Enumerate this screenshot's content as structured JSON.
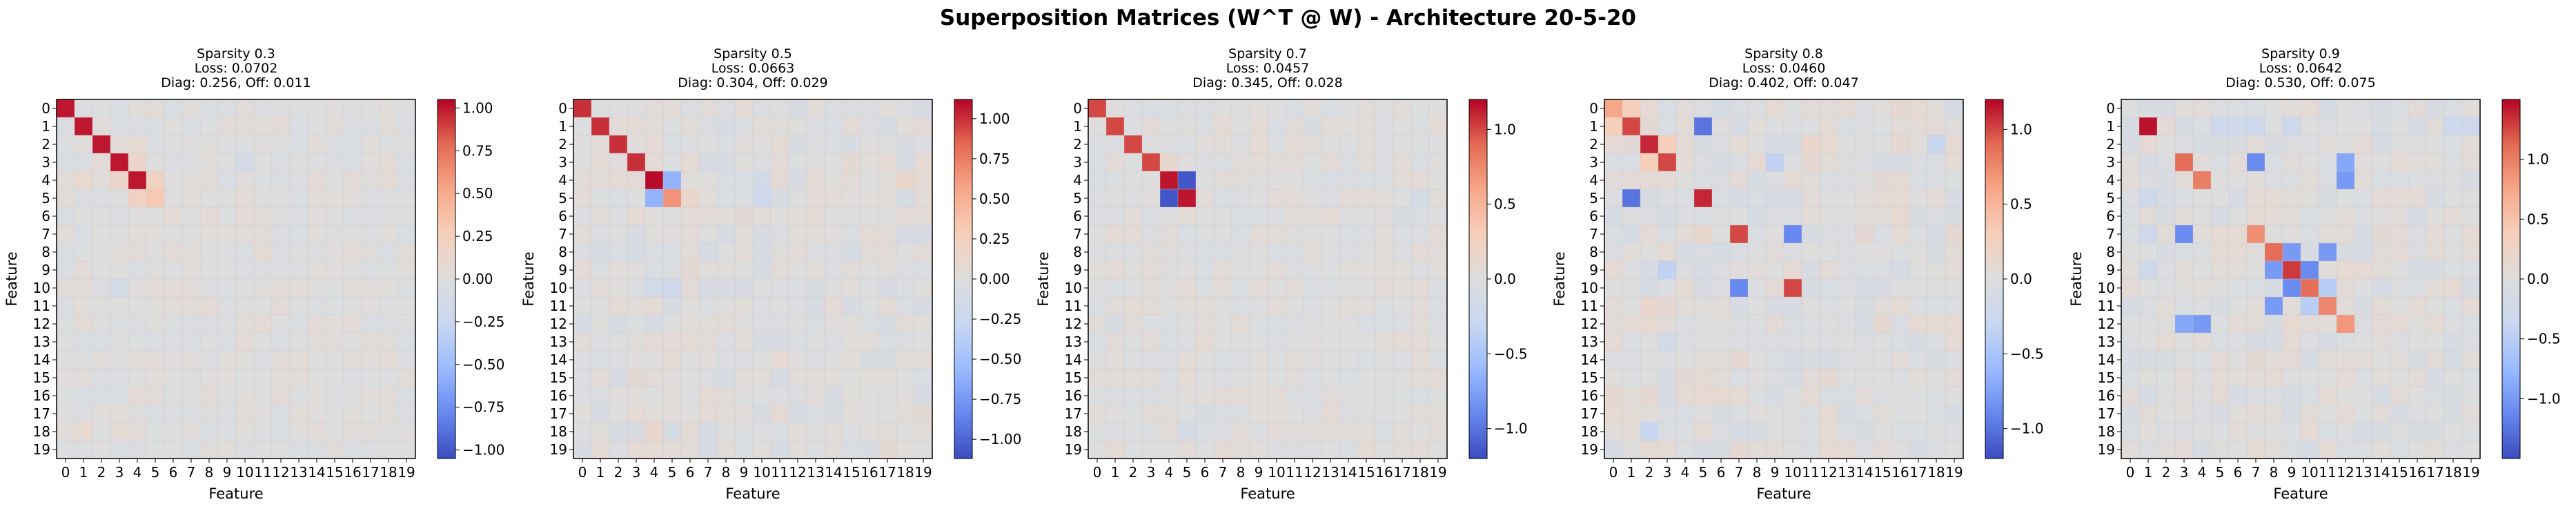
{
  "figure": {
    "suptitle": "Superposition Matrices (W^T @ W) - Architecture 20-5-20"
  },
  "colors": {
    "cmap": [
      "#3b4cc0",
      "#6788ee",
      "#9abbff",
      "#c9d7f0",
      "#dddddd",
      "#f6cfbb",
      "#f7a789",
      "#e36a53",
      "#b40426"
    ]
  },
  "chart_data": [
    {
      "type": "heatmap",
      "title": "Sparsity 0.3\nLoss: 0.0702\nDiag: 0.256, Off: 0.011",
      "xlabel": "Feature",
      "ylabel": "Feature",
      "x_ticks": [
        "0",
        "1",
        "2",
        "3",
        "4",
        "5",
        "6",
        "7",
        "8",
        "9",
        "10",
        "11",
        "12",
        "13",
        "14",
        "15",
        "16",
        "17",
        "18",
        "19"
      ],
      "y_ticks": [
        "0",
        "1",
        "2",
        "3",
        "4",
        "5",
        "6",
        "7",
        "8",
        "9",
        "10",
        "11",
        "12",
        "13",
        "14",
        "15",
        "16",
        "17",
        "18",
        "19"
      ],
      "vmin": -1.05,
      "vmax": 1.05,
      "colorbar_ticks": [
        -1.0,
        -0.75,
        -0.5,
        -0.25,
        0.0,
        0.25,
        0.5,
        0.75,
        1.0
      ],
      "colorbar_labels": [
        "−1.00",
        "−0.75",
        "−0.50",
        "−0.25",
        "0.00",
        "0.25",
        "0.50",
        "0.75",
        "1.00"
      ],
      "diagonal": [
        1.0,
        1.0,
        1.0,
        1.0,
        1.0,
        0.15,
        0.05,
        0.0,
        0.0,
        0.0,
        0.0,
        0.0,
        0.0,
        0.0,
        0.0,
        0.0,
        0.0,
        0.0,
        0.0,
        0.0
      ],
      "cells": [
        [
          4,
          5,
          0.2
        ],
        [
          5,
          4,
          0.2
        ],
        [
          3,
          4,
          0.15
        ],
        [
          4,
          3,
          0.15
        ],
        [
          5,
          5,
          0.3
        ],
        [
          10,
          3,
          -0.12
        ],
        [
          3,
          10,
          -0.12
        ],
        [
          18,
          1,
          0.1
        ],
        [
          4,
          1,
          0.1
        ],
        [
          2,
          4,
          0.08
        ]
      ],
      "background_noise": 0.06,
      "seed": 11
    },
    {
      "type": "heatmap",
      "title": "Sparsity 0.5\nLoss: 0.0663\nDiag: 0.304, Off: 0.029",
      "xlabel": "Feature",
      "ylabel": "Feature",
      "x_ticks": [
        "0",
        "1",
        "2",
        "3",
        "4",
        "5",
        "6",
        "7",
        "8",
        "9",
        "10",
        "11",
        "12",
        "13",
        "14",
        "15",
        "16",
        "17",
        "18",
        "19"
      ],
      "y_ticks": [
        "0",
        "1",
        "2",
        "3",
        "4",
        "5",
        "6",
        "7",
        "8",
        "9",
        "10",
        "11",
        "12",
        "13",
        "14",
        "15",
        "16",
        "17",
        "18",
        "19"
      ],
      "vmin": -1.12,
      "vmax": 1.12,
      "colorbar_ticks": [
        -1.0,
        -0.75,
        -0.5,
        -0.25,
        0.0,
        0.25,
        0.5,
        0.75,
        1.0
      ],
      "colorbar_labels": [
        "−1.00",
        "−0.75",
        "−0.50",
        "−0.25",
        "0.00",
        "0.25",
        "0.50",
        "0.75",
        "1.00"
      ],
      "diagonal": [
        1.0,
        1.0,
        1.0,
        1.0,
        1.1,
        0.65,
        0.05,
        0.0,
        0.0,
        0.0,
        0.0,
        0.0,
        0.0,
        0.0,
        0.0,
        0.0,
        0.0,
        0.0,
        0.0,
        0.0
      ],
      "cells": [
        [
          4,
          5,
          -0.6
        ],
        [
          5,
          4,
          -0.6
        ],
        [
          4,
          10,
          -0.15
        ],
        [
          10,
          4,
          -0.15
        ],
        [
          4,
          18,
          0.15
        ],
        [
          18,
          4,
          0.15
        ],
        [
          10,
          5,
          -0.2
        ],
        [
          5,
          10,
          -0.2
        ],
        [
          5,
          6,
          0.15
        ]
      ],
      "background_noise": 0.08,
      "seed": 23
    },
    {
      "type": "heatmap",
      "title": "Sparsity 0.7\nLoss: 0.0457\nDiag: 0.345, Off: 0.028",
      "xlabel": "Feature",
      "ylabel": "Feature",
      "x_ticks": [
        "0",
        "1",
        "2",
        "3",
        "4",
        "5",
        "6",
        "7",
        "8",
        "9",
        "10",
        "11",
        "12",
        "13",
        "14",
        "15",
        "16",
        "17",
        "18",
        "19"
      ],
      "y_ticks": [
        "0",
        "1",
        "2",
        "3",
        "4",
        "5",
        "6",
        "7",
        "8",
        "9",
        "10",
        "11",
        "12",
        "13",
        "14",
        "15",
        "16",
        "17",
        "18",
        "19"
      ],
      "vmin": -1.2,
      "vmax": 1.2,
      "colorbar_ticks": [
        -1.0,
        -0.5,
        0.0,
        0.5,
        1.0
      ],
      "colorbar_labels": [
        "−1.0",
        "−0.5",
        "0.0",
        "0.5",
        "1.0"
      ],
      "diagonal": [
        1.0,
        1.0,
        1.0,
        1.0,
        1.15,
        1.15,
        0.0,
        0.0,
        0.0,
        0.0,
        0.0,
        0.0,
        0.0,
        0.0,
        0.0,
        0.0,
        0.0,
        0.0,
        0.0,
        0.0
      ],
      "cells": [
        [
          4,
          5,
          -1.15
        ],
        [
          5,
          4,
          -1.15
        ],
        [
          3,
          4,
          0.12
        ],
        [
          18,
          5,
          -0.12
        ],
        [
          5,
          18,
          -0.12
        ],
        [
          2,
          9,
          0.08
        ]
      ],
      "background_noise": 0.07,
      "seed": 37
    },
    {
      "type": "heatmap",
      "title": "Sparsity 0.8\nLoss: 0.0460\nDiag: 0.402, Off: 0.047",
      "xlabel": "Feature",
      "ylabel": "Feature",
      "x_ticks": [
        "0",
        "1",
        "2",
        "3",
        "4",
        "5",
        "6",
        "7",
        "8",
        "9",
        "10",
        "11",
        "12",
        "13",
        "14",
        "15",
        "16",
        "17",
        "18",
        "19"
      ],
      "y_ticks": [
        "0",
        "1",
        "2",
        "3",
        "4",
        "5",
        "6",
        "7",
        "8",
        "9",
        "10",
        "11",
        "12",
        "13",
        "14",
        "15",
        "16",
        "17",
        "18",
        "19"
      ],
      "vmin": -1.2,
      "vmax": 1.2,
      "colorbar_ticks": [
        -1.0,
        -0.5,
        0.0,
        0.5,
        1.0
      ],
      "colorbar_labels": [
        "−1.0",
        "−0.5",
        "0.0",
        "0.5",
        "1.0"
      ],
      "diagonal": [
        0.6,
        1.0,
        1.1,
        1.0,
        0.0,
        1.1,
        0.0,
        1.0,
        0.0,
        0.0,
        1.0,
        0.0,
        0.0,
        0.0,
        0.0,
        0.0,
        0.0,
        0.0,
        0.0,
        0.0
      ],
      "cells": [
        [
          1,
          5,
          -1.0
        ],
        [
          5,
          1,
          -1.0
        ],
        [
          7,
          10,
          -0.9
        ],
        [
          10,
          7,
          -0.9
        ],
        [
          2,
          18,
          -0.3
        ],
        [
          18,
          2,
          -0.3
        ],
        [
          3,
          9,
          -0.35
        ],
        [
          9,
          3,
          -0.35
        ],
        [
          3,
          2,
          0.3
        ],
        [
          2,
          3,
          0.3
        ],
        [
          0,
          1,
          0.3
        ],
        [
          1,
          0,
          0.3
        ],
        [
          7,
          5,
          0.12
        ],
        [
          11,
          2,
          0.15
        ],
        [
          2,
          11,
          0.15
        ],
        [
          13,
          3,
          -0.15
        ]
      ],
      "background_noise": 0.1,
      "seed": 41
    },
    {
      "type": "heatmap",
      "title": "Sparsity 0.9\nLoss: 0.0642\nDiag: 0.530, Off: 0.075",
      "xlabel": "Feature",
      "ylabel": "Feature",
      "x_ticks": [
        "0",
        "1",
        "2",
        "3",
        "4",
        "5",
        "6",
        "7",
        "8",
        "9",
        "10",
        "11",
        "12",
        "13",
        "14",
        "15",
        "16",
        "17",
        "18",
        "19"
      ],
      "y_ticks": [
        "0",
        "1",
        "2",
        "3",
        "4",
        "5",
        "6",
        "7",
        "8",
        "9",
        "10",
        "11",
        "12",
        "13",
        "14",
        "15",
        "16",
        "17",
        "18",
        "19"
      ],
      "vmin": -1.5,
      "vmax": 1.5,
      "colorbar_ticks": [
        -1.0,
        -0.5,
        0.0,
        0.5,
        1.0
      ],
      "colorbar_labels": [
        "−1.0",
        "−0.5",
        "0.0",
        "0.5",
        "1.0"
      ],
      "diagonal": [
        0.0,
        1.45,
        0.0,
        1.1,
        1.0,
        0.0,
        0.0,
        0.9,
        1.1,
        1.3,
        1.1,
        0.95,
        0.85,
        0.0,
        0.0,
        0.0,
        0.0,
        0.0,
        0.0,
        0.0
      ],
      "cells": [
        [
          3,
          7,
          -1.1
        ],
        [
          7,
          3,
          -1.1
        ],
        [
          4,
          12,
          -1.0
        ],
        [
          12,
          4,
          -1.0
        ],
        [
          8,
          9,
          -1.0
        ],
        [
          9,
          8,
          -1.0
        ],
        [
          9,
          10,
          -1.1
        ],
        [
          10,
          9,
          -1.1
        ],
        [
          10,
          11,
          -0.5
        ],
        [
          11,
          10,
          -0.5
        ],
        [
          11,
          8,
          -1.0
        ],
        [
          8,
          11,
          -1.0
        ],
        [
          12,
          3,
          -0.9
        ],
        [
          3,
          12,
          -0.9
        ],
        [
          1,
          18,
          -0.3
        ],
        [
          1,
          19,
          -0.3
        ],
        [
          1,
          9,
          -0.3
        ],
        [
          1,
          5,
          -0.3
        ],
        [
          1,
          7,
          -0.3
        ],
        [
          1,
          6,
          -0.25
        ],
        [
          5,
          1,
          -0.25
        ],
        [
          7,
          1,
          -0.25
        ],
        [
          9,
          1,
          -0.25
        ]
      ],
      "background_noise": 0.12,
      "seed": 53
    }
  ]
}
